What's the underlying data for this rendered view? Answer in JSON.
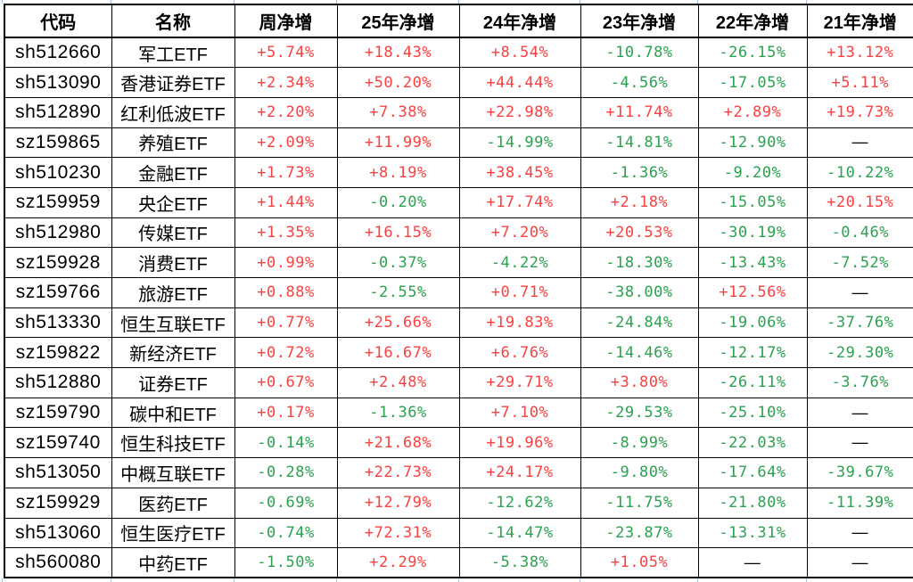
{
  "table": {
    "columns": [
      "代码",
      "名称",
      "周净增",
      "25年净增",
      "24年净增",
      "23年净增",
      "22年净增",
      "21年净增"
    ],
    "rows": [
      {
        "code": "sh512660",
        "name": "军工ETF",
        "values": [
          "+5.74%",
          "+18.43%",
          "+8.54%",
          "-10.78%",
          "-26.15%",
          "+13.12%"
        ]
      },
      {
        "code": "sh513090",
        "name": "香港证券ETF",
        "values": [
          "+2.34%",
          "+50.20%",
          "+44.44%",
          "-4.56%",
          "-17.05%",
          "+5.11%"
        ]
      },
      {
        "code": "sh512890",
        "name": "红利低波ETF",
        "values": [
          "+2.20%",
          "+7.38%",
          "+22.98%",
          "+11.74%",
          "+2.89%",
          "+19.73%"
        ]
      },
      {
        "code": "sz159865",
        "name": "养殖ETF",
        "values": [
          "+2.09%",
          "+11.99%",
          "-14.99%",
          "-14.81%",
          "-12.90%",
          "—"
        ]
      },
      {
        "code": "sh510230",
        "name": "金融ETF",
        "values": [
          "+1.73%",
          "+8.19%",
          "+38.45%",
          "-1.36%",
          "-9.20%",
          "-10.22%"
        ]
      },
      {
        "code": "sz159959",
        "name": "央企ETF",
        "values": [
          "+1.44%",
          "-0.20%",
          "+17.74%",
          "+2.18%",
          "-15.05%",
          "+20.15%"
        ]
      },
      {
        "code": "sh512980",
        "name": "传媒ETF",
        "values": [
          "+1.35%",
          "+16.15%",
          "+7.20%",
          "+20.53%",
          "-30.19%",
          "-0.46%"
        ]
      },
      {
        "code": "sz159928",
        "name": "消费ETF",
        "values": [
          "+0.99%",
          "-0.37%",
          "-4.22%",
          "-18.30%",
          "-13.43%",
          "-7.52%"
        ]
      },
      {
        "code": "sz159766",
        "name": "旅游ETF",
        "values": [
          "+0.88%",
          "-2.55%",
          "+0.71%",
          "-38.00%",
          "+12.56%",
          "—"
        ]
      },
      {
        "code": "sh513330",
        "name": "恒生互联ETF",
        "values": [
          "+0.77%",
          "+25.66%",
          "+19.83%",
          "-24.84%",
          "-19.06%",
          "-37.76%"
        ]
      },
      {
        "code": "sz159822",
        "name": "新经济ETF",
        "values": [
          "+0.72%",
          "+16.67%",
          "+6.76%",
          "-14.46%",
          "-12.17%",
          "-29.30%"
        ]
      },
      {
        "code": "sh512880",
        "name": "证券ETF",
        "values": [
          "+0.67%",
          "+2.48%",
          "+29.71%",
          "+3.80%",
          "-26.11%",
          "-3.76%"
        ]
      },
      {
        "code": "sz159790",
        "name": "碳中和ETF",
        "values": [
          "+0.17%",
          "-1.36%",
          "+7.10%",
          "-29.53%",
          "-25.10%",
          "—"
        ]
      },
      {
        "code": "sz159740",
        "name": "恒生科技ETF",
        "values": [
          "-0.14%",
          "+21.68%",
          "+19.96%",
          "-8.99%",
          "-22.03%",
          "—"
        ]
      },
      {
        "code": "sh513050",
        "name": "中概互联ETF",
        "values": [
          "-0.28%",
          "+22.73%",
          "+24.17%",
          "-9.80%",
          "-17.64%",
          "-39.67%"
        ]
      },
      {
        "code": "sz159929",
        "name": "医药ETF",
        "values": [
          "-0.69%",
          "+12.79%",
          "-12.62%",
          "-11.75%",
          "-21.80%",
          "-11.39%"
        ]
      },
      {
        "code": "sh513060",
        "name": "恒生医疗ETF",
        "values": [
          "-0.74%",
          "+72.31%",
          "-14.47%",
          "-23.87%",
          "-13.31%",
          "—"
        ]
      },
      {
        "code": "sh560080",
        "name": "中药ETF",
        "values": [
          "-1.50%",
          "+2.29%",
          "-5.38%",
          "+1.05%",
          "—",
          "—"
        ]
      }
    ]
  },
  "colors": {
    "positive": "#fa4141",
    "negative": "#2ba24f",
    "dash": "#000000",
    "border": "#000000",
    "gridline": "#a9c3e2"
  }
}
